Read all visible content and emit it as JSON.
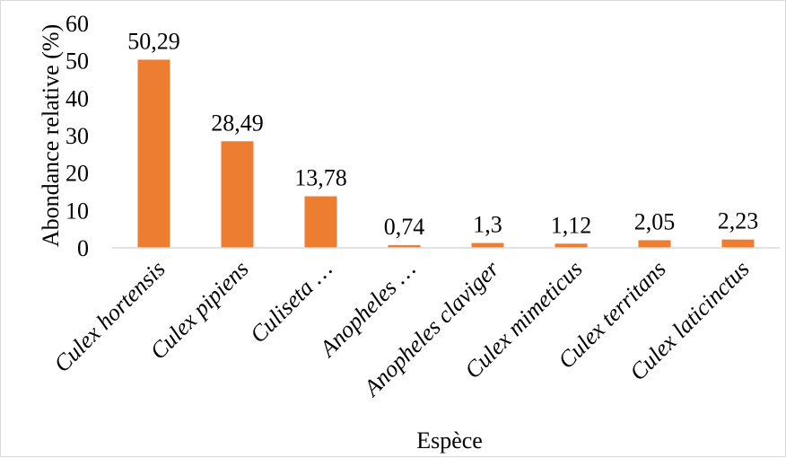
{
  "chart_data": {
    "type": "bar",
    "categories": [
      "Culex hortensis",
      "Culex pipiens",
      "Culiseta …",
      "Anopheles …",
      "Anopheles claviger",
      "Culex mimeticus",
      "Culex territans",
      "Culex laticinctus"
    ],
    "values": [
      50.29,
      28.49,
      13.78,
      0.74,
      1.3,
      1.12,
      2.05,
      2.23
    ],
    "data_labels": [
      "50,29",
      "28,49",
      "13,78",
      "0,74",
      "1,3",
      "1,12",
      "2,05",
      "2,23"
    ],
    "xlabel": "Espèce",
    "ylabel": "Abondance relative (%)",
    "ylim": [
      0,
      60
    ],
    "yticks": [
      "0",
      "10",
      "20",
      "30",
      "40",
      "50",
      "60"
    ],
    "grid": false,
    "legend": "none",
    "bar_color": "#ED7D31"
  }
}
